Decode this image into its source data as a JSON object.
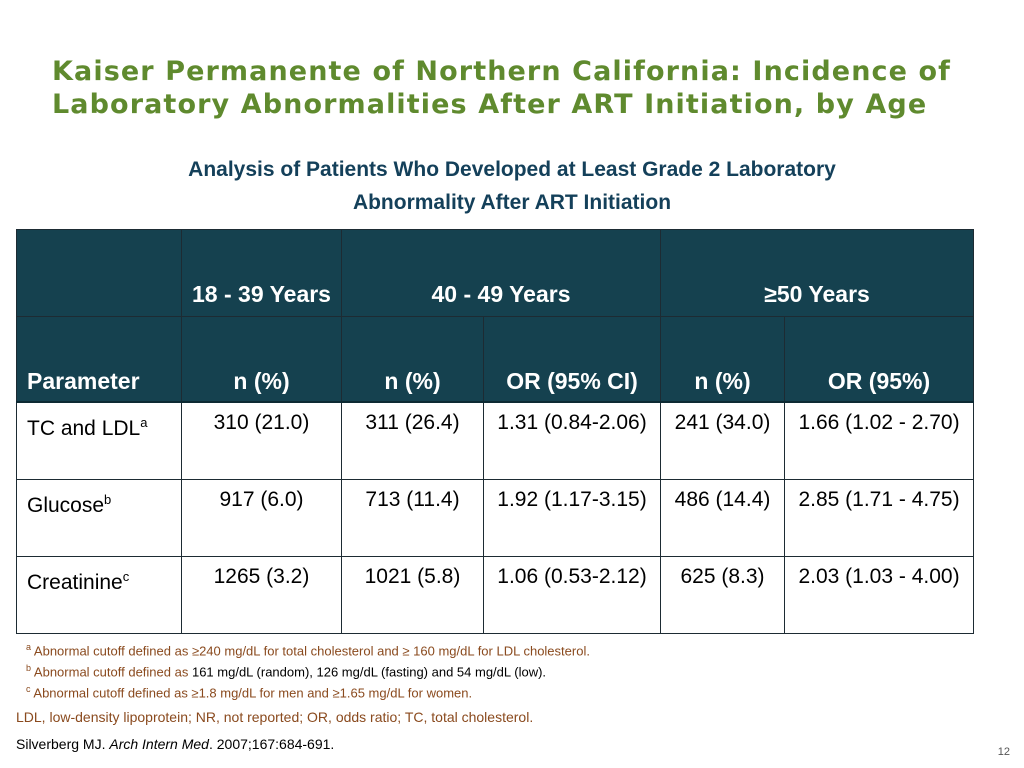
{
  "title": "Kaiser Permanente of Northern California: Incidence of Laboratory Abnormalities After ART Initiation, by Age",
  "subtitle_line1": "Analysis of Patients Who Developed at Least Grade 2 Laboratory",
  "subtitle_line2": "Abnormality After ART Initiation",
  "table": {
    "group_headers": [
      "18 - 39 Years",
      "40 - 49 Years",
      "≥50 Years"
    ],
    "column_headers": [
      "Parameter",
      "n (%)",
      "n (%)",
      "OR (95% CI)",
      "n (%)",
      "OR (95%)"
    ],
    "rows": [
      {
        "label": "TC and LDL",
        "sup": "a",
        "cells": [
          "310 (21.0)",
          "311 (26.4)",
          "1.31 (0.84-2.06)",
          "241 (34.0)",
          "1.66 (1.02 - 2.70)"
        ]
      },
      {
        "label": "Glucose",
        "sup": "b",
        "cells": [
          "917 (6.0)",
          "713 (11.4)",
          "1.92 (1.17-3.15)",
          "486 (14.4)",
          "2.85 (1.71 - 4.75)"
        ]
      },
      {
        "label": "Creatinine",
        "sup": "c",
        "cells": [
          "1265 (3.2)",
          "1021 (5.8)",
          "1.06 (0.53-2.12)",
          "625 (8.3)",
          "2.03 (1.03 - 4.00)"
        ]
      }
    ]
  },
  "footnotes": {
    "a": {
      "mark": "a",
      "text": "Abnormal cutoff defined as ≥240 mg/dL for total cholesterol and ≥ 160 mg/dL for LDL cholesterol."
    },
    "b": {
      "mark": "b",
      "text_colored": "Abnormal cutoff defined as",
      "text_black": "161 mg/dL (random), 126 mg/dL (fasting)  and 54 mg/dL (low)."
    },
    "c": {
      "mark": "c",
      "text": "Abnormal cutoff defined as  ≥1.8 mg/dL for men and  ≥1.65 mg/dL for women."
    }
  },
  "abbreviations": "LDL, low-density lipoprotein; NR, not reported; OR, odds ratio; TC, total cholesterol.",
  "citation": {
    "author": "Silverberg MJ.",
    "journal": "Arch Intern Med",
    "details": ". 2007;167:684-691."
  },
  "page_number": "12",
  "colors": {
    "title": "#5f8a2e",
    "subtitle": "#14405a",
    "header_bg": "#15414f",
    "footnote": "#8a4a1e"
  }
}
